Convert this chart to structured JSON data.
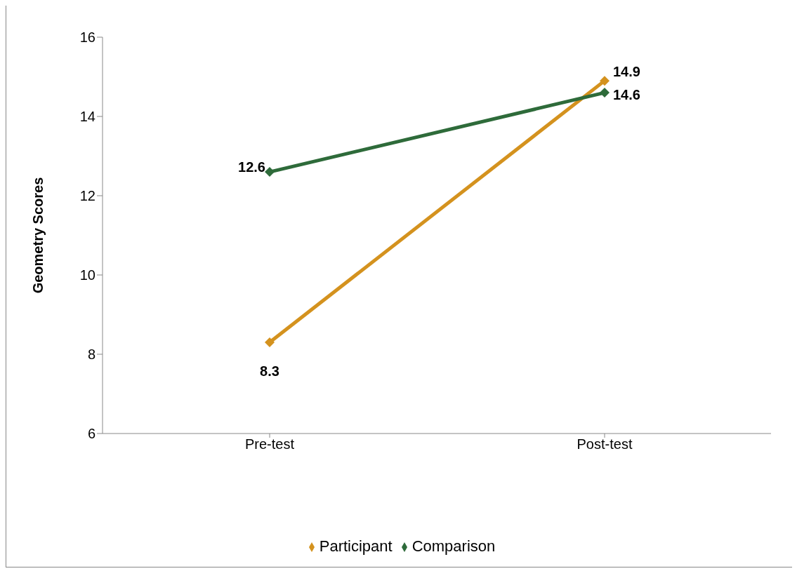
{
  "chart_data": {
    "type": "line",
    "ylabel": "Geometry Scores",
    "categories": [
      "Pre-test",
      "Post-test"
    ],
    "series": [
      {
        "name": "Participant",
        "color": "#d4921e",
        "values": [
          8.3,
          14.9
        ]
      },
      {
        "name": "Comparison",
        "color": "#2e6b3a",
        "values": [
          12.6,
          14.6
        ]
      }
    ],
    "ylim": [
      6,
      16
    ],
    "yticks": [
      6,
      8,
      10,
      12,
      14,
      16
    ],
    "grid": false,
    "legend": "bottom",
    "marker": "diamond",
    "line_style": "solid",
    "data_labels": true
  }
}
